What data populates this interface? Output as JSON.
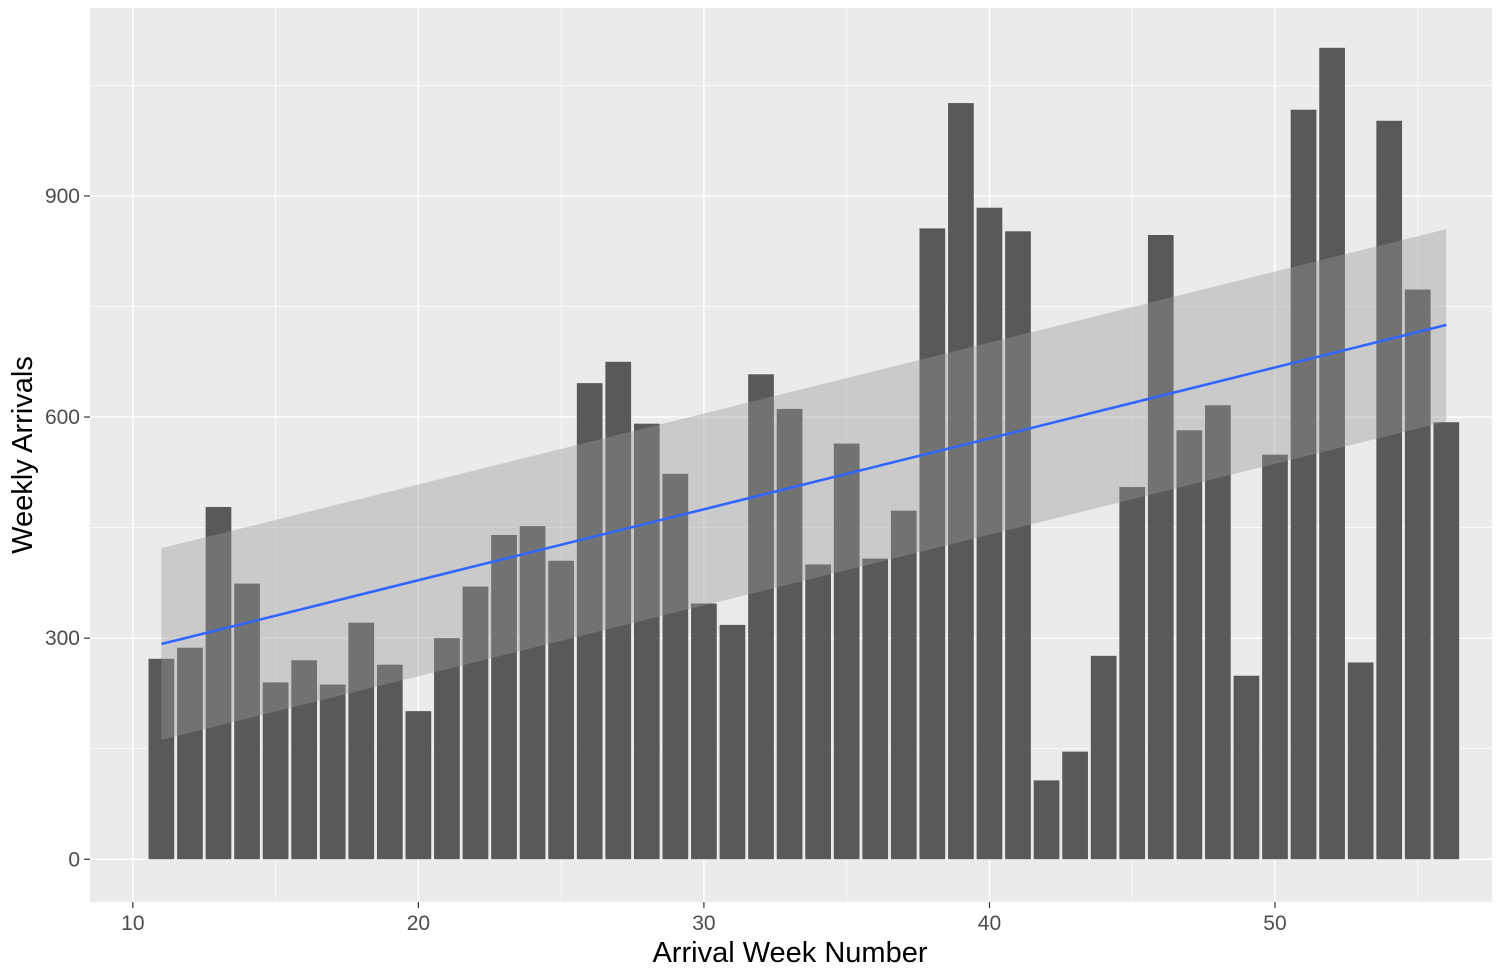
{
  "chart_data": {
    "type": "bar",
    "xlabel": "Arrival Week Number",
    "ylabel": "Weekly Arrivals",
    "xlim": [
      8.5,
      57.6
    ],
    "ylim": [
      -58,
      1155
    ],
    "x_ticks": [
      10,
      20,
      30,
      40,
      50
    ],
    "y_ticks": [
      0,
      300,
      600,
      900
    ],
    "grid": true,
    "legend": "none",
    "x": [
      11,
      12,
      13,
      14,
      15,
      16,
      17,
      18,
      19,
      20,
      21,
      22,
      23,
      24,
      25,
      26,
      27,
      28,
      29,
      30,
      31,
      32,
      33,
      34,
      35,
      36,
      37,
      38,
      39,
      40,
      41,
      42,
      43,
      44,
      45,
      46,
      47,
      48,
      49,
      50,
      51,
      52,
      53,
      54,
      55,
      56
    ],
    "values": [
      272,
      287,
      478,
      374,
      240,
      270,
      237,
      321,
      264,
      201,
      300,
      370,
      440,
      452,
      405,
      646,
      675,
      591,
      523,
      347,
      318,
      658,
      611,
      400,
      564,
      408,
      473,
      856,
      1026,
      884,
      852,
      107,
      146,
      276,
      505,
      847,
      582,
      616,
      249,
      549,
      1017,
      1101,
      267,
      1002,
      773,
      593
    ],
    "trend": {
      "x_start": 11,
      "y_start": 292,
      "x_end": 56,
      "y_end": 725,
      "ci_lower_start": 162,
      "ci_upper_start": 422,
      "ci_lower_end": 594,
      "ci_upper_end": 855
    },
    "colors": {
      "panel": "#ebebeb",
      "grid": "#ffffff",
      "bar": "#595959",
      "ribbon": "#999999",
      "line": "#3366ff"
    }
  }
}
